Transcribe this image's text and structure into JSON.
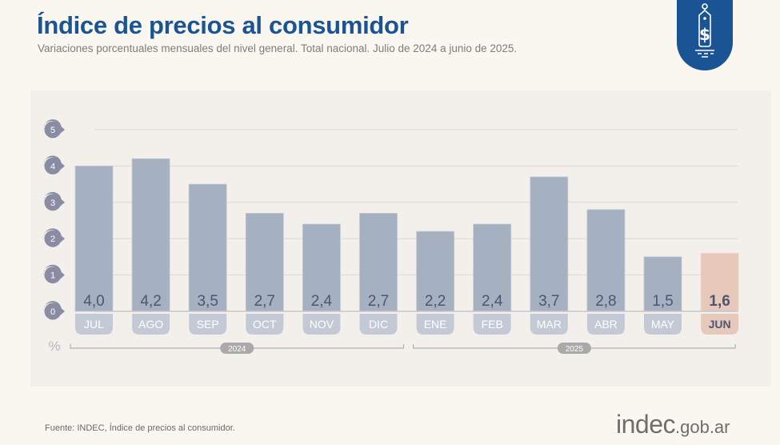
{
  "header": {
    "title": "Índice de precios al consumidor",
    "subtitle": "Variaciones porcentuales mensuales del nivel general. Total nacional. Julio de 2024 a junio de 2025.",
    "badge_icon": "price-tag-dollar-icon"
  },
  "chart_data": {
    "type": "bar",
    "title": "Índice de precios al consumidor",
    "subtitle": "Variaciones porcentuales mensuales del nivel general. Total nacional. Julio de 2024 a junio de 2025.",
    "xlabel": "",
    "ylabel": "%",
    "ylim": [
      0,
      5
    ],
    "yticks": [
      0,
      1,
      2,
      3,
      4,
      5
    ],
    "grid": true,
    "categories": [
      "JUL",
      "AGO",
      "SEP",
      "OCT",
      "NOV",
      "DIC",
      "ENE",
      "FEB",
      "MAR",
      "ABR",
      "MAY",
      "JUN"
    ],
    "values": [
      4.0,
      4.2,
      3.5,
      2.7,
      2.4,
      2.7,
      2.2,
      2.4,
      3.7,
      2.8,
      1.5,
      1.6
    ],
    "value_labels": [
      "4,0",
      "4,2",
      "3,5",
      "2,7",
      "2,4",
      "2,7",
      "2,2",
      "2,4",
      "3,7",
      "2,8",
      "1,5",
      "1,6"
    ],
    "highlight_index": 11,
    "year_groups": [
      {
        "label": "2024",
        "start": 0,
        "end": 5
      },
      {
        "label": "2025",
        "start": 6,
        "end": 11
      }
    ],
    "colors": {
      "bar": "#a5b0c0",
      "bar_highlight": "#e6c9ba",
      "label_pill": "#c3cad6",
      "value_text": "#4e5573",
      "axis_bubble": "#8a8ca3",
      "year_pill": "#a9a9a9"
    }
  },
  "footer": {
    "source": "Fuente: INDEC, Índice de precios al consumidor.",
    "logo_main": "indec",
    "logo_domain": ".gob.ar"
  }
}
